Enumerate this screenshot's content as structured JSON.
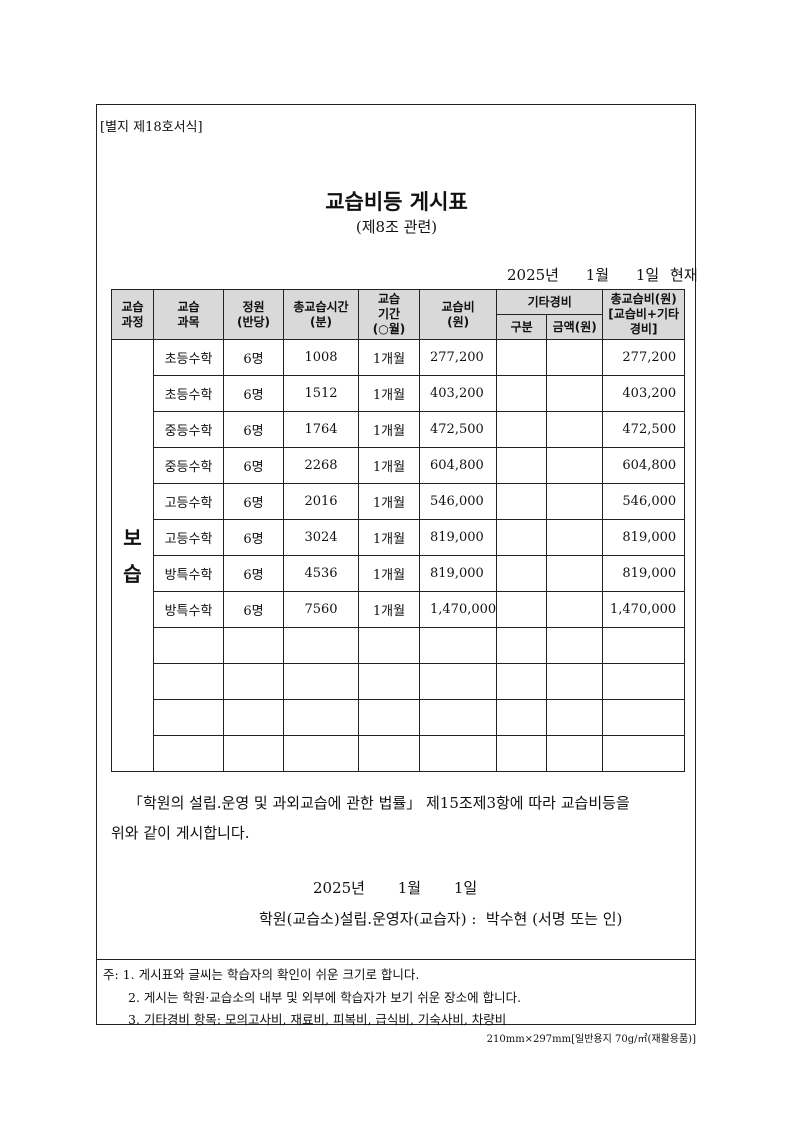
{
  "form_label": "[별지 제18호서식]",
  "title": "교습비등 게시표",
  "subtitle": "(제8조 관련)",
  "as_of": {
    "year": "2025년",
    "month": "1월",
    "day": "1일",
    "suffix": "현재"
  },
  "table": {
    "headers": {
      "course": "교습\n과정",
      "subject": "교습\n과목",
      "capacity": "정원\n(반당)",
      "total_time": "총교습시간\n(분)",
      "period": "교습\n기간\n(○월)",
      "fee": "교습비\n(원)",
      "other": "기타경비",
      "other_type": "구분",
      "other_amount": "금액(원)",
      "total": "총교습비(원)\n[교습비+기타\n경비]"
    },
    "course_name": "보\n습",
    "rows": [
      {
        "subject": "초등수학",
        "capacity": "6명",
        "minutes": "1008",
        "period": "1개월",
        "fee": "277,200",
        "other_type": "",
        "other_amount": "",
        "total": "277,200"
      },
      {
        "subject": "초등수학",
        "capacity": "6명",
        "minutes": "1512",
        "period": "1개월",
        "fee": "403,200",
        "other_type": "",
        "other_amount": "",
        "total": "403,200"
      },
      {
        "subject": "중등수학",
        "capacity": "6명",
        "minutes": "1764",
        "period": "1개월",
        "fee": "472,500",
        "other_type": "",
        "other_amount": "",
        "total": "472,500"
      },
      {
        "subject": "중등수학",
        "capacity": "6명",
        "minutes": "2268",
        "period": "1개월",
        "fee": "604,800",
        "other_type": "",
        "other_amount": "",
        "total": "604,800"
      },
      {
        "subject": "고등수학",
        "capacity": "6명",
        "minutes": "2016",
        "period": "1개월",
        "fee": "546,000",
        "other_type": "",
        "other_amount": "",
        "total": "546,000"
      },
      {
        "subject": "고등수학",
        "capacity": "6명",
        "minutes": "3024",
        "period": "1개월",
        "fee": "819,000",
        "other_type": "",
        "other_amount": "",
        "total": "819,000"
      },
      {
        "subject": "방특수학",
        "capacity": "6명",
        "minutes": "4536",
        "period": "1개월",
        "fee": "819,000",
        "other_type": "",
        "other_amount": "",
        "total": "819,000"
      },
      {
        "subject": "방특수학",
        "capacity": "6명",
        "minutes": "7560",
        "period": "1개월",
        "fee": "1,470,000",
        "other_type": "",
        "other_amount": "",
        "total": "1,470,000"
      },
      {
        "subject": "",
        "capacity": "",
        "minutes": "",
        "period": "",
        "fee": "",
        "other_type": "",
        "other_amount": "",
        "total": ""
      },
      {
        "subject": "",
        "capacity": "",
        "minutes": "",
        "period": "",
        "fee": "",
        "other_type": "",
        "other_amount": "",
        "total": ""
      },
      {
        "subject": "",
        "capacity": "",
        "minutes": "",
        "period": "",
        "fee": "",
        "other_type": "",
        "other_amount": "",
        "total": ""
      },
      {
        "subject": "",
        "capacity": "",
        "minutes": "",
        "period": "",
        "fee": "",
        "other_type": "",
        "other_amount": "",
        "total": ""
      }
    ]
  },
  "statement_line1": "「학원의 설립.운영 및 과외교습에 관한 법률」 제15조제3항에 따라 교습비등을",
  "statement_line2": "위와 같이 게시합니다.",
  "sign_date": {
    "year": "2025년",
    "month": "1월",
    "day": "1일"
  },
  "signer": "학원(교습소)설립.운영자(교습자) :  박수현 (서명 또는 인)",
  "notes": [
    "주: 1. 게시표와 글씨는 학습자의 확인이 쉬운 크기로 합니다.",
    "2. 게시는 학원·교습소의 내부 및 외부에 학습자가 보기 쉬운 장소에 합니다.",
    "3. 기타경비 항목: 모의고사비, 재료비, 피복비, 급식비, 기숙사비, 차량비"
  ],
  "paper_spec": "210mm×297mm[일반용지 70g/㎡(재활용품)]",
  "colors": {
    "header_bg": "#d9d9d9",
    "border": "#222222"
  }
}
